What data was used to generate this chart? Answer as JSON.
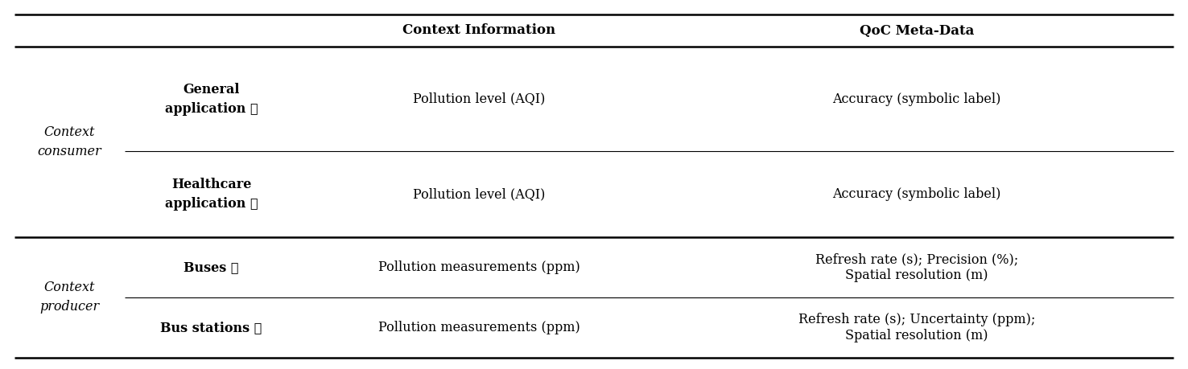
{
  "background_color": "#ffffff",
  "header_col2": "Context Information",
  "header_col3": "QoC Meta-Data",
  "group1_label_line1": "Context",
  "group1_label_line2": "consumer",
  "group2_label_line1": "Context",
  "group2_label_line2": "producer",
  "rows": [
    {
      "col1_line1": "General",
      "col1_line2": "application Ⓐ",
      "col2": "Pollution level (AQI)",
      "col3": "Accuracy (symbolic label)"
    },
    {
      "col1_line1": "Healthcare",
      "col1_line2": "application Ⓑ",
      "col2": "Pollution level (AQI)",
      "col3": "Accuracy (symbolic label)"
    },
    {
      "col1_line1": "Buses Ⓒ",
      "col1_line2": "",
      "col2": "Pollution measurements (ppm)",
      "col3_line1": "Refresh rate (s); Precision (%);",
      "col3_line2": "Spatial resolution (m)"
    },
    {
      "col1_line1": "Bus stations Ⓓ",
      "col1_line2": "",
      "col2": "Pollution measurements (ppm)",
      "col3_line1": "Refresh rate (s); Uncertainty (ppm);",
      "col3_line2": "Spatial resolution (m)"
    }
  ],
  "font_size": 11.5,
  "header_font_size": 12,
  "line_thick": 1.8,
  "line_thin": 0.8
}
